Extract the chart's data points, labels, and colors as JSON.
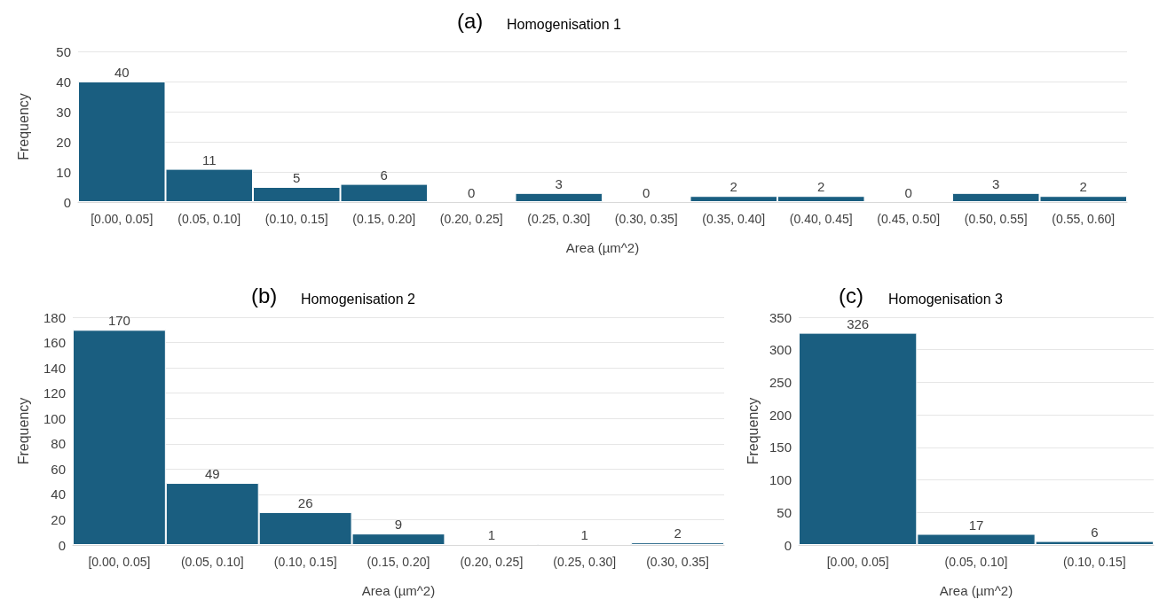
{
  "chart_data": [
    {
      "type": "bar",
      "title": "(a)",
      "subtitle": "Homogenisation 1",
      "xlabel": "Area (µm^2)",
      "ylabel": "Frequency",
      "categories": [
        "[0.00, 0.05]",
        "(0.05, 0.10]",
        "(0.10, 0.15]",
        "(0.15, 0.20]",
        "(0.20, 0.25]",
        "(0.25, 0.30]",
        "(0.30, 0.35]",
        "(0.35, 0.40]",
        "(0.40, 0.45]",
        "(0.45, 0.50]",
        "(0.50, 0.55]",
        "(0.55, 0.60]"
      ],
      "values": [
        40,
        11,
        5,
        6,
        0,
        3,
        0,
        2,
        2,
        0,
        3,
        2
      ],
      "color": "#1a5e80",
      "ylim": [
        0,
        50
      ],
      "yticks": [
        0,
        10,
        20,
        30,
        40,
        50
      ],
      "grid": "y",
      "data_labels": true
    },
    {
      "type": "bar",
      "title": "(b)",
      "subtitle": "Homogenisation 2",
      "xlabel": "Area (µm^2)",
      "ylabel": "Frequency",
      "categories": [
        "[0.00, 0.05]",
        "(0.05, 0.10]",
        "(0.10, 0.15]",
        "(0.15, 0.20]",
        "(0.20, 0.25]",
        "(0.25, 0.30]",
        "(0.30, 0.35]"
      ],
      "values": [
        170,
        49,
        26,
        9,
        1,
        1,
        2
      ],
      "color": "#1a5e80",
      "ylim": [
        0,
        180
      ],
      "yticks": [
        0,
        20,
        40,
        60,
        80,
        100,
        120,
        140,
        160,
        180
      ],
      "grid": "y",
      "data_labels": true
    },
    {
      "type": "bar",
      "title": "(c)",
      "subtitle": "Homogenisation 3",
      "xlabel": "Area (µm^2)",
      "ylabel": "Frequency",
      "categories": [
        "[0.00, 0.05]",
        "(0.05, 0.10]",
        "(0.10, 0.15]"
      ],
      "values": [
        326,
        17,
        6
      ],
      "color": "#1a5e80",
      "ylim": [
        0,
        350
      ],
      "yticks": [
        0,
        50,
        100,
        150,
        200,
        250,
        300,
        350
      ],
      "grid": "y",
      "data_labels": true
    }
  ]
}
